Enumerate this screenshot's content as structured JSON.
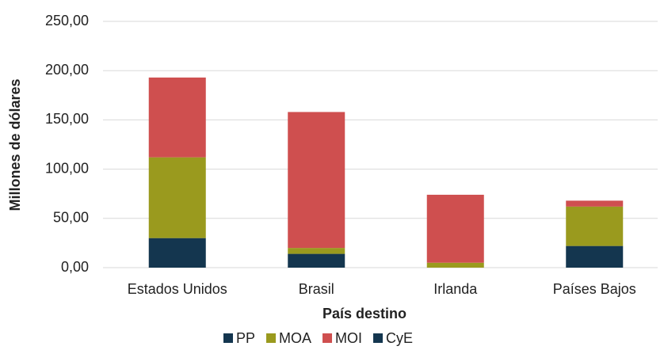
{
  "chart_data": {
    "type": "stacked_bar",
    "xlabel": "País destino",
    "ylabel": "Millones de dólares",
    "categories": [
      "Estados Unidos",
      "Brasil",
      "Irlanda",
      "Países Bajos"
    ],
    "series": [
      {
        "name": "PP",
        "color": "#14364f",
        "values": [
          30,
          14,
          0,
          22
        ]
      },
      {
        "name": "MOA",
        "color": "#9a9a1e",
        "values": [
          82,
          6,
          5,
          40
        ]
      },
      {
        "name": "MOI",
        "color": "#cf4f4f",
        "values": [
          81,
          138,
          69,
          6
        ]
      },
      {
        "name": "CyE",
        "color": "#14364f",
        "values": [
          0,
          0,
          0,
          0
        ]
      }
    ],
    "ylim": [
      0,
      250
    ],
    "yticks": [
      {
        "value": 0,
        "label": "0,00"
      },
      {
        "value": 50,
        "label": "50,00"
      },
      {
        "value": 100,
        "label": "100,00"
      },
      {
        "value": 150,
        "label": "150,00"
      },
      {
        "value": 200,
        "label": "200,00"
      },
      {
        "value": 250,
        "label": "250,00"
      }
    ],
    "grid": true
  }
}
